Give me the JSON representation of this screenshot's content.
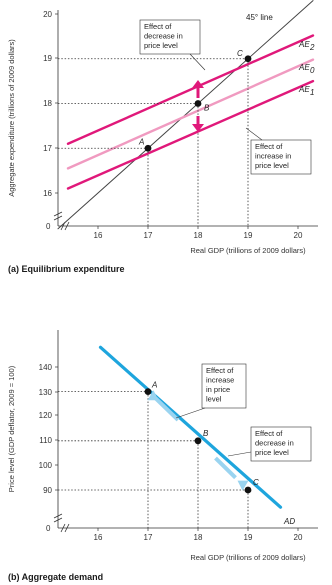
{
  "chart_data": [
    {
      "type": "line",
      "caption": "(a) Equilibrium expenditure",
      "xlabel": "Real GDP (trillions of 2009 dollars)",
      "ylabel": "Aggregate expenditure (trillions of 2009 dollars)",
      "xlim": [
        15.2,
        20.6
      ],
      "ylim": [
        15.3,
        20.2
      ],
      "x_ticks": [
        "16",
        "17",
        "18",
        "19",
        "20"
      ],
      "y_ticks": [
        "16",
        "17",
        "18",
        "19",
        "20"
      ],
      "origin_label": "0",
      "series": [
        {
          "name": "45° line",
          "color": "#444444",
          "points": [
            [
              15.2,
              15.2
            ],
            [
              20.3,
              20.3
            ]
          ]
        },
        {
          "name": "AE2",
          "color": "#e0187a",
          "points": [
            [
              15.4,
              17.1
            ],
            [
              20.3,
              19.52
            ]
          ]
        },
        {
          "name": "AE0",
          "color": "#f09ac0",
          "points": [
            [
              15.4,
              16.55
            ],
            [
              20.3,
              18.98
            ]
          ]
        },
        {
          "name": "AE1",
          "color": "#e0187a",
          "points": [
            [
              15.4,
              16.1
            ],
            [
              20.3,
              18.5
            ]
          ]
        }
      ],
      "points": [
        {
          "label": "A",
          "x": 17,
          "y": 17
        },
        {
          "label": "B",
          "x": 18,
          "y": 18
        },
        {
          "label": "C",
          "x": 19,
          "y": 19
        }
      ],
      "annotations": [
        {
          "lines": [
            "Effect of",
            "decrease in",
            "price level"
          ]
        },
        {
          "lines": [
            "Effect of",
            "increase in",
            "price level"
          ]
        }
      ],
      "legend_line_label": "45° line"
    },
    {
      "type": "line",
      "caption": "(b) Aggregate demand",
      "xlabel": "Real GDP (trillions of 2009 dollars)",
      "ylabel": "Price level (GDP deflator, 2009 = 100)",
      "xlim": [
        15.2,
        20.6
      ],
      "ylim": [
        72,
        152
      ],
      "x_ticks": [
        "16",
        "17",
        "18",
        "19",
        "20"
      ],
      "y_ticks": [
        "90",
        "100",
        "110",
        "120",
        "130",
        "140"
      ],
      "origin_label": "0",
      "series": [
        {
          "name": "AD",
          "color": "#1ea5dd",
          "points": [
            [
              16.05,
              148
            ],
            [
              19.65,
              83
            ]
          ]
        }
      ],
      "points": [
        {
          "label": "A",
          "x": 17,
          "y": 130
        },
        {
          "label": "B",
          "x": 18,
          "y": 110
        },
        {
          "label": "C",
          "x": 19,
          "y": 90
        }
      ],
      "annotations": [
        {
          "lines": [
            "Effect of",
            "increase",
            "in price",
            "level"
          ]
        },
        {
          "lines": [
            "Effect of",
            "decrease in",
            "price level"
          ]
        }
      ]
    }
  ]
}
